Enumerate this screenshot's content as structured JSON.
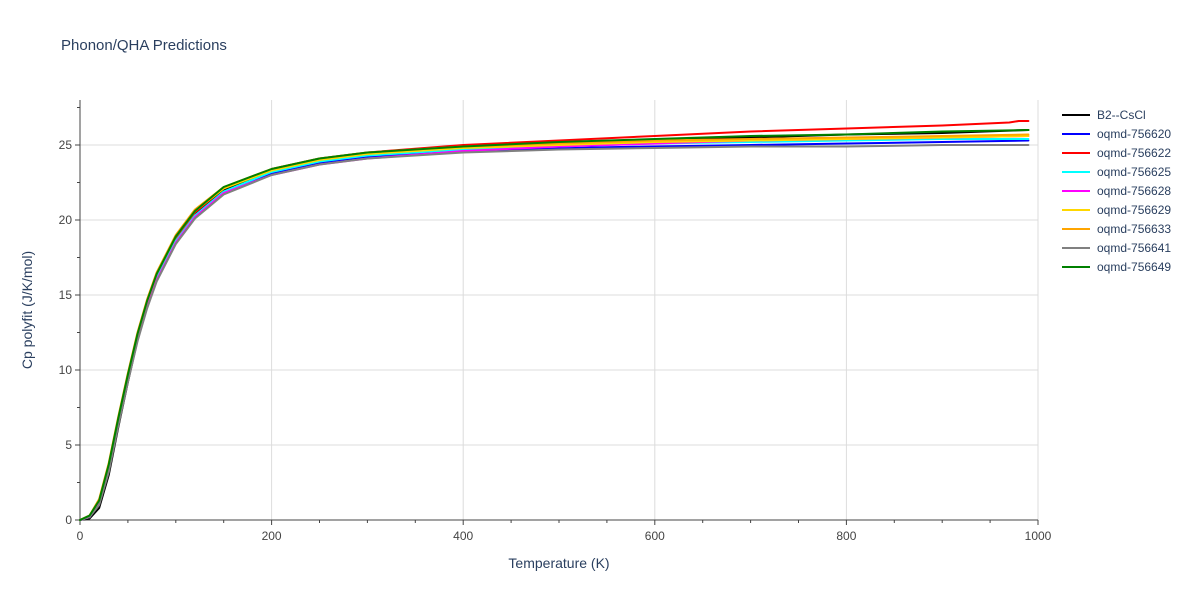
{
  "chart_data": {
    "type": "line",
    "title": "Phonon/QHA Predictions",
    "xlabel": "Temperature (K)",
    "ylabel": "Cp polyfit (J/K/mol)",
    "xlim": [
      0,
      1000
    ],
    "ylim": [
      0,
      28
    ],
    "xticks": [
      0,
      200,
      400,
      600,
      800,
      1000
    ],
    "yticks": [
      0,
      5,
      10,
      15,
      20,
      25
    ],
    "grid": true,
    "legend_position": "right",
    "series": [
      {
        "name": "B2--CsCl",
        "color": "#000000",
        "x": [
          0,
          10,
          20,
          30,
          40,
          50,
          60,
          70,
          80,
          100,
          120,
          150,
          200,
          250,
          300,
          400,
          500,
          600,
          700,
          800,
          900,
          990
        ],
        "values": [
          0,
          0.1,
          0.8,
          3.0,
          6.2,
          9.2,
          12.0,
          14.3,
          16.1,
          18.7,
          20.4,
          22.0,
          23.3,
          24.0,
          24.4,
          24.8,
          25.1,
          25.3,
          25.5,
          25.7,
          25.8,
          26.0
        ]
      },
      {
        "name": "oqmd-756620",
        "color": "#0000ff",
        "x": [
          0,
          10,
          20,
          30,
          40,
          50,
          60,
          70,
          80,
          100,
          120,
          150,
          200,
          250,
          300,
          400,
          500,
          600,
          700,
          800,
          900,
          990
        ],
        "values": [
          0,
          0.2,
          1.1,
          3.4,
          6.5,
          9.4,
          12.1,
          14.3,
          16.0,
          18.5,
          20.2,
          21.8,
          23.1,
          23.8,
          24.2,
          24.6,
          24.8,
          24.9,
          25.0,
          25.1,
          25.2,
          25.3
        ]
      },
      {
        "name": "oqmd-756622",
        "color": "#ff0000",
        "x": [
          0,
          10,
          20,
          30,
          40,
          50,
          60,
          70,
          80,
          100,
          120,
          150,
          200,
          250,
          300,
          400,
          500,
          600,
          700,
          800,
          900,
          970,
          980,
          990
        ],
        "values": [
          0,
          0.2,
          1.2,
          3.6,
          6.7,
          9.6,
          12.3,
          14.5,
          16.3,
          18.8,
          20.5,
          22.1,
          23.4,
          24.1,
          24.5,
          25.0,
          25.3,
          25.6,
          25.9,
          26.1,
          26.3,
          26.5,
          26.6,
          26.6
        ]
      },
      {
        "name": "oqmd-756625",
        "color": "#00ffff",
        "x": [
          0,
          10,
          20,
          30,
          40,
          50,
          60,
          70,
          80,
          100,
          120,
          150,
          200,
          250,
          300,
          400,
          500,
          600,
          700,
          800,
          900,
          990
        ],
        "values": [
          0,
          0.2,
          1.1,
          3.5,
          6.6,
          9.5,
          12.2,
          14.4,
          16.1,
          18.6,
          20.3,
          21.9,
          23.2,
          23.9,
          24.3,
          24.7,
          24.9,
          25.1,
          25.2,
          25.3,
          25.4,
          25.4
        ]
      },
      {
        "name": "oqmd-756628",
        "color": "#ff00ff",
        "x": [
          0,
          10,
          20,
          30,
          40,
          50,
          60,
          70,
          80,
          100,
          120,
          150,
          200,
          250,
          300,
          400,
          500,
          600,
          700,
          800,
          900,
          990
        ],
        "values": [
          0,
          0.2,
          1.1,
          3.4,
          6.5,
          9.4,
          12.1,
          14.3,
          16.0,
          18.5,
          20.2,
          21.8,
          23.0,
          23.7,
          24.1,
          24.6,
          24.9,
          25.1,
          25.3,
          25.4,
          25.5,
          25.6
        ]
      },
      {
        "name": "oqmd-756629",
        "color": "#ffd700",
        "x": [
          0,
          10,
          20,
          30,
          40,
          50,
          60,
          70,
          80,
          100,
          120,
          150,
          200,
          250,
          300,
          400,
          500,
          600,
          700,
          800,
          900,
          990
        ],
        "values": [
          0,
          0.3,
          1.3,
          3.7,
          6.8,
          9.7,
          12.4,
          14.6,
          16.4,
          18.9,
          20.6,
          22.1,
          23.3,
          24.0,
          24.4,
          24.8,
          25.0,
          25.2,
          25.3,
          25.4,
          25.5,
          25.6
        ]
      },
      {
        "name": "oqmd-756633",
        "color": "#ffa500",
        "x": [
          0,
          10,
          20,
          30,
          40,
          50,
          60,
          70,
          80,
          100,
          120,
          150,
          200,
          250,
          300,
          400,
          500,
          600,
          700,
          800,
          900,
          990
        ],
        "values": [
          0,
          0.3,
          1.4,
          3.8,
          6.9,
          9.8,
          12.5,
          14.7,
          16.5,
          19.0,
          20.7,
          22.2,
          23.4,
          24.1,
          24.5,
          24.9,
          25.1,
          25.3,
          25.4,
          25.5,
          25.6,
          25.7
        ]
      },
      {
        "name": "oqmd-756641",
        "color": "#808080",
        "x": [
          0,
          10,
          20,
          30,
          40,
          50,
          60,
          70,
          80,
          100,
          120,
          150,
          200,
          250,
          300,
          400,
          500,
          600,
          700,
          800,
          900,
          990
        ],
        "values": [
          0,
          0.2,
          1.0,
          3.2,
          6.3,
          9.2,
          11.9,
          14.1,
          15.9,
          18.4,
          20.1,
          21.7,
          23.0,
          23.7,
          24.1,
          24.5,
          24.7,
          24.8,
          24.9,
          24.9,
          25.0,
          25.0
        ]
      },
      {
        "name": "oqmd-756649",
        "color": "#008000",
        "x": [
          0,
          10,
          20,
          30,
          40,
          50,
          60,
          70,
          80,
          100,
          120,
          150,
          200,
          250,
          300,
          400,
          500,
          600,
          700,
          800,
          900,
          990
        ],
        "values": [
          0,
          0.3,
          1.3,
          3.7,
          6.8,
          9.7,
          12.4,
          14.6,
          16.4,
          18.9,
          20.6,
          22.2,
          23.4,
          24.1,
          24.5,
          24.9,
          25.2,
          25.4,
          25.6,
          25.7,
          25.9,
          26.0
        ]
      }
    ]
  }
}
